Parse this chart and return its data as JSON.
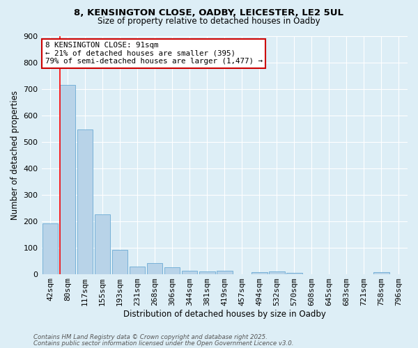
{
  "title_line1": "8, KENSINGTON CLOSE, OADBY, LEICESTER, LE2 5UL",
  "title_line2": "Size of property relative to detached houses in Oadby",
  "xlabel": "Distribution of detached houses by size in Oadby",
  "ylabel": "Number of detached properties",
  "bar_labels": [
    "42sqm",
    "80sqm",
    "117sqm",
    "155sqm",
    "193sqm",
    "231sqm",
    "268sqm",
    "306sqm",
    "344sqm",
    "381sqm",
    "419sqm",
    "457sqm",
    "494sqm",
    "532sqm",
    "570sqm",
    "608sqm",
    "645sqm",
    "683sqm",
    "721sqm",
    "758sqm",
    "796sqm"
  ],
  "bar_values": [
    190,
    715,
    545,
    225,
    92,
    28,
    40,
    25,
    13,
    10,
    11,
    0,
    7,
    9,
    5,
    0,
    0,
    0,
    0,
    8,
    0
  ],
  "bar_color": "#b8d3e8",
  "bar_edge_color": "#6aaad4",
  "background_color": "#ddeef6",
  "grid_color": "#ffffff",
  "red_line_x": 0.575,
  "annotation_title": "8 KENSINGTON CLOSE: 91sqm",
  "annotation_line1": "← 21% of detached houses are smaller (395)",
  "annotation_line2": "79% of semi-detached houses are larger (1,477) →",
  "annotation_box_facecolor": "#ffffff",
  "annotation_box_edgecolor": "#cc0000",
  "ylim": [
    0,
    900
  ],
  "yticks": [
    0,
    100,
    200,
    300,
    400,
    500,
    600,
    700,
    800,
    900
  ],
  "footnote1": "Contains HM Land Registry data © Crown copyright and database right 2025.",
  "footnote2": "Contains public sector information licensed under the Open Government Licence v3.0."
}
